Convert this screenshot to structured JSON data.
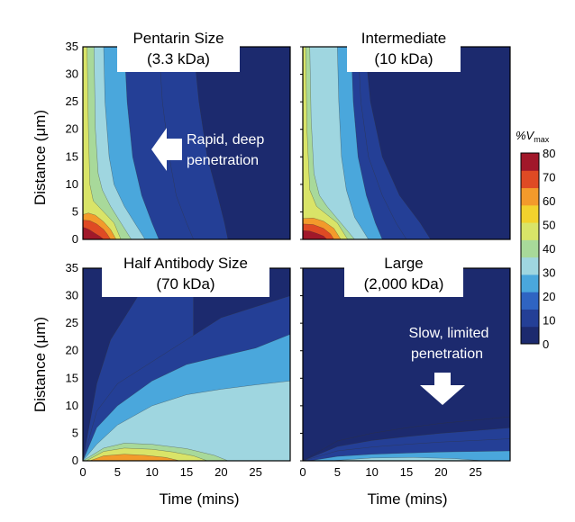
{
  "chart_data": {
    "type": "heatmap",
    "xlabel": "Time (mins)",
    "ylabel": "Distance (μm)",
    "xlim": [
      0,
      30
    ],
    "ylim": [
      0,
      35
    ],
    "xticks": [
      "0",
      "5",
      "10",
      "15",
      "20",
      "25"
    ],
    "yticks": [
      "0",
      "5",
      "10",
      "15",
      "20",
      "25",
      "30",
      "35"
    ],
    "colorbar": {
      "label_prefix": "%V",
      "label_subscript": "max",
      "range": [
        0,
        80
      ],
      "ticks": [
        "80",
        "70",
        "60",
        "50",
        "40",
        "30",
        "20",
        "10",
        "0"
      ],
      "colors": [
        "#1c2a6e",
        "#243f96",
        "#2f64c2",
        "#4aa7dc",
        "#9fd6e0",
        "#a8d99a",
        "#d9e468",
        "#f2d22d",
        "#f39a2b",
        "#df4a24",
        "#a1182a"
      ]
    },
    "panels": [
      {
        "title_line1": "Pentarin Size",
        "title_line2": "(3.3 kDa)",
        "annotation_line1": "Rapid, deep",
        "annotation_line2": "penetration",
        "arrow": "left",
        "contours": [
          {
            "level": 80,
            "x": [
              0,
              0.5,
              1,
              1.5,
              2,
              2.5,
              3
            ],
            "y": [
              2.2,
              2.0,
              1.7,
              1.3,
              0.9,
              0.5,
              0
            ]
          },
          {
            "level": 70,
            "x": [
              0,
              1,
              2,
              3,
              3.5,
              4
            ],
            "y": [
              3.5,
              3.4,
              2.8,
              1.8,
              1.0,
              0
            ]
          },
          {
            "level": 60,
            "x": [
              0,
              0.8,
              1.8,
              3,
              4,
              4.8
            ],
            "y": [
              4.5,
              4.8,
              4.4,
              3.2,
              1.8,
              0
            ]
          },
          {
            "level": 50,
            "x": [
              0.6,
              0.8,
              1.0,
              1.5,
              3,
              4.5,
              5.5
            ],
            "y": [
              35,
              20,
              10,
              7,
              5,
              3,
              0
            ]
          },
          {
            "level": 40,
            "x": [
              1.6,
              1.8,
              2.2,
              2.8,
              4,
              5.5,
              7
            ],
            "y": [
              35,
              20,
              12,
              9,
              6,
              3,
              0
            ]
          },
          {
            "level": 30,
            "x": [
              3.0,
              3.2,
              3.8,
              4.5,
              6,
              7.5,
              9
            ],
            "y": [
              35,
              25,
              15,
              10,
              6,
              3,
              0
            ]
          },
          {
            "level": 20,
            "x": [
              6.0,
              6.4,
              7.2,
              8.5,
              10,
              11
            ],
            "y": [
              35,
              25,
              15,
              8,
              3,
              0
            ]
          },
          {
            "level": 10,
            "x": [
              11.0,
              11.5,
              12.5,
              13.5,
              15,
              16
            ],
            "y": [
              35,
              25,
              15,
              8,
              3,
              0
            ]
          },
          {
            "level": 5,
            "x": [
              16.0,
              16.8,
              18,
              19.5,
              20.5,
              21
            ],
            "y": [
              35,
              25,
              15,
              8,
              3,
              0
            ]
          }
        ]
      },
      {
        "title_line1": "Intermediate",
        "title_line2": "(10 kDa)",
        "annotation_line1": "",
        "annotation_line2": "",
        "arrow": "",
        "contours": [
          {
            "level": 80,
            "x": [
              0,
              1,
              2,
              3,
              3.5
            ],
            "y": [
              1.6,
              1.5,
              1.1,
              0.6,
              0
            ]
          },
          {
            "level": 70,
            "x": [
              0,
              1.5,
              3,
              4,
              4.5
            ],
            "y": [
              2.8,
              2.7,
              2.0,
              1.0,
              0
            ]
          },
          {
            "level": 60,
            "x": [
              0,
              1.5,
              3,
              4.5,
              5.5
            ],
            "y": [
              3.8,
              3.9,
              3.3,
              2.0,
              0
            ]
          },
          {
            "level": 50,
            "x": [
              0.4,
              0.6,
              1.0,
              2,
              3.5,
              5,
              6.5
            ],
            "y": [
              35,
              20,
              9,
              6,
              4.5,
              3,
              0
            ]
          },
          {
            "level": 40,
            "x": [
              1.0,
              1.2,
              1.6,
              2.4,
              3.5,
              5.5,
              7.5
            ],
            "y": [
              35,
              22,
              12,
              8,
              6,
              3,
              0
            ]
          },
          {
            "level": 30,
            "x": [
              5.0,
              5.2,
              5.6,
              6.3,
              7.5,
              9.5
            ],
            "y": [
              35,
              25,
              15,
              9,
              4,
              0
            ]
          },
          {
            "level": 20,
            "x": [
              7.0,
              7.3,
              8.0,
              9.2,
              10.5,
              11.5
            ],
            "y": [
              35,
              25,
              15,
              8,
              3,
              0
            ]
          },
          {
            "level": 10,
            "x": [
              8.0,
              8.4,
              9.5,
              11.5,
              13.5,
              15
            ],
            "y": [
              35,
              25,
              15,
              8,
              3,
              0
            ]
          },
          {
            "level": 5,
            "x": [
              9.0,
              9.8,
              11.5,
              14,
              17,
              18.5
            ],
            "y": [
              35,
              25,
              15,
              8,
              3,
              0
            ]
          }
        ]
      },
      {
        "title_line1": "Half Antibody Size",
        "title_line2": "(70 kDa)",
        "annotation_line1": "",
        "annotation_line2": "",
        "arrow": "",
        "contours": [
          {
            "level": 60,
            "x": [
              1,
              3,
              6,
              9,
              12,
              14
            ],
            "y": [
              0,
              0.9,
              1.2,
              1.0,
              0.6,
              0
            ]
          },
          {
            "level": 50,
            "x": [
              0.5,
              3,
              6,
              10,
              13,
              16,
              18
            ],
            "y": [
              0,
              1.7,
              2.3,
              2.1,
              1.6,
              0.9,
              0
            ]
          },
          {
            "level": 40,
            "x": [
              0,
              3,
              6,
              10,
              15,
              19,
              21
            ],
            "y": [
              0,
              2.3,
              3.2,
              3.0,
              2.2,
              1.0,
              0
            ]
          },
          {
            "level": 30,
            "x": [
              0,
              2,
              5,
              10,
              15,
              20,
              25,
              30
            ],
            "y": [
              0,
              3,
              6.5,
              10,
              12,
              13,
              13.8,
              14.5
            ]
          },
          {
            "level": 20,
            "x": [
              0,
              2,
              5,
              10,
              15,
              20,
              25,
              30
            ],
            "y": [
              0,
              6,
              10,
              14.5,
              17.5,
              19,
              20.5,
              23
            ]
          },
          {
            "level": 10,
            "x": [
              0,
              2,
              5,
              10,
              15,
              20,
              25,
              30
            ],
            "y": [
              0,
              9,
              14,
              18,
              22,
              26,
              28,
              30
            ]
          },
          {
            "level": 5,
            "x": [
              0,
              2,
              4,
              8,
              12,
              16
            ],
            "y": [
              0,
              14,
              22,
              30,
              33,
              35
            ]
          }
        ]
      },
      {
        "title_line1": "Large",
        "title_line2": "(2,000 kDa)",
        "annotation_line1": "Slow, limited",
        "annotation_line2": "penetration",
        "arrow": "down",
        "contours": [
          {
            "level": 30,
            "x": [
              4,
              10,
              16,
              22,
              26
            ],
            "y": [
              0,
              0.5,
              0.6,
              0.4,
              0
            ]
          },
          {
            "level": 20,
            "x": [
              1,
              5,
              10,
              15,
              20,
              25,
              30
            ],
            "y": [
              0,
              0.8,
              1.2,
              1.4,
              1.6,
              1.7,
              1.8
            ]
          },
          {
            "level": 10,
            "x": [
              0,
              5,
              10,
              15,
              20,
              25,
              30
            ],
            "y": [
              0,
              1.8,
              2.5,
              3.0,
              3.4,
              3.7,
              4.0
            ]
          },
          {
            "level": 5,
            "x": [
              0,
              5,
              10,
              15,
              20,
              25,
              30
            ],
            "y": [
              0,
              2.6,
              3.7,
              4.4,
              5.0,
              5.5,
              6.0
            ]
          },
          {
            "level": 2,
            "x": [
              0,
              5,
              10,
              15,
              20,
              25,
              30
            ],
            "y": [
              0,
              3.6,
              5.0,
              6.0,
              6.8,
              7.4,
              8.0
            ]
          }
        ]
      }
    ]
  }
}
